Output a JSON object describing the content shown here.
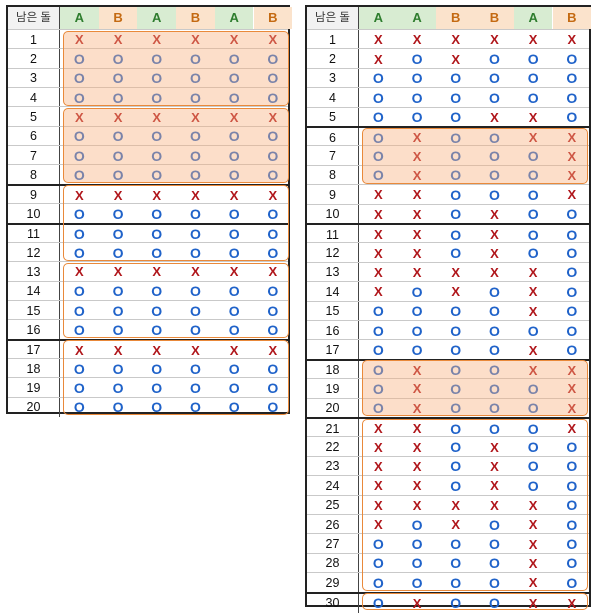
{
  "left_table": {
    "header": {
      "first": "남은 돌",
      "columns": [
        "A",
        "B",
        "A",
        "B",
        "A",
        "B"
      ]
    },
    "rows": [
      {
        "n": "1",
        "v": [
          "X",
          "X",
          "X",
          "X",
          "X",
          "X"
        ]
      },
      {
        "n": "2",
        "v": [
          "O",
          "O",
          "O",
          "O",
          "O",
          "O"
        ]
      },
      {
        "n": "3",
        "v": [
          "O",
          "O",
          "O",
          "O",
          "O",
          "O"
        ]
      },
      {
        "n": "4",
        "v": [
          "O",
          "O",
          "O",
          "O",
          "O",
          "O"
        ]
      },
      {
        "n": "5",
        "v": [
          "X",
          "X",
          "X",
          "X",
          "X",
          "X"
        ]
      },
      {
        "n": "6",
        "v": [
          "O",
          "O",
          "O",
          "O",
          "O",
          "O"
        ]
      },
      {
        "n": "7",
        "v": [
          "O",
          "O",
          "O",
          "O",
          "O",
          "O"
        ]
      },
      {
        "n": "8",
        "v": [
          "O",
          "O",
          "O",
          "O",
          "O",
          "O"
        ]
      },
      {
        "n": "9",
        "v": [
          "X",
          "X",
          "X",
          "X",
          "X",
          "X"
        ]
      },
      {
        "n": "10",
        "v": [
          "O",
          "O",
          "O",
          "O",
          "O",
          "O"
        ]
      },
      {
        "n": "11",
        "v": [
          "O",
          "O",
          "O",
          "O",
          "O",
          "O"
        ]
      },
      {
        "n": "12",
        "v": [
          "O",
          "O",
          "O",
          "O",
          "O",
          "O"
        ]
      },
      {
        "n": "13",
        "v": [
          "X",
          "X",
          "X",
          "X",
          "X",
          "X"
        ]
      },
      {
        "n": "14",
        "v": [
          "O",
          "O",
          "O",
          "O",
          "O",
          "O"
        ]
      },
      {
        "n": "15",
        "v": [
          "O",
          "O",
          "O",
          "O",
          "O",
          "O"
        ]
      },
      {
        "n": "16",
        "v": [
          "O",
          "O",
          "O",
          "O",
          "O",
          "O"
        ]
      },
      {
        "n": "17",
        "v": [
          "X",
          "X",
          "X",
          "X",
          "X",
          "X"
        ]
      },
      {
        "n": "18",
        "v": [
          "O",
          "O",
          "O",
          "O",
          "O",
          "O"
        ]
      },
      {
        "n": "19",
        "v": [
          "O",
          "O",
          "O",
          "O",
          "O",
          "O"
        ]
      },
      {
        "n": "20",
        "v": [
          "O",
          "O",
          "O",
          "O",
          "O",
          "O"
        ]
      }
    ]
  },
  "right_table": {
    "header": {
      "first": "남은 돌",
      "columns": [
        "A",
        "A",
        "B",
        "B",
        "A",
        "B"
      ]
    },
    "rows": [
      {
        "n": "1",
        "v": [
          "X",
          "X",
          "X",
          "X",
          "X",
          "X"
        ]
      },
      {
        "n": "2",
        "v": [
          "X",
          "O",
          "X",
          "O",
          "O",
          "O"
        ]
      },
      {
        "n": "3",
        "v": [
          "O",
          "O",
          "O",
          "O",
          "O",
          "O"
        ]
      },
      {
        "n": "4",
        "v": [
          "O",
          "O",
          "O",
          "O",
          "O",
          "O"
        ]
      },
      {
        "n": "5",
        "v": [
          "O",
          "O",
          "O",
          "X",
          "X",
          "O"
        ]
      },
      {
        "n": "6",
        "v": [
          "O",
          "X",
          "O",
          "O",
          "X",
          "X"
        ]
      },
      {
        "n": "7",
        "v": [
          "O",
          "X",
          "O",
          "O",
          "O",
          "X"
        ]
      },
      {
        "n": "8",
        "v": [
          "O",
          "X",
          "O",
          "O",
          "O",
          "X"
        ]
      },
      {
        "n": "9",
        "v": [
          "X",
          "X",
          "O",
          "O",
          "O",
          "X"
        ]
      },
      {
        "n": "10",
        "v": [
          "X",
          "X",
          "O",
          "X",
          "O",
          "O"
        ]
      },
      {
        "n": "11",
        "v": [
          "X",
          "X",
          "O",
          "X",
          "O",
          "O"
        ]
      },
      {
        "n": "12",
        "v": [
          "X",
          "X",
          "O",
          "X",
          "O",
          "O"
        ]
      },
      {
        "n": "13",
        "v": [
          "X",
          "X",
          "X",
          "X",
          "X",
          "O"
        ]
      },
      {
        "n": "14",
        "v": [
          "X",
          "O",
          "X",
          "O",
          "X",
          "O"
        ]
      },
      {
        "n": "15",
        "v": [
          "O",
          "O",
          "O",
          "O",
          "X",
          "O"
        ]
      },
      {
        "n": "16",
        "v": [
          "O",
          "O",
          "O",
          "O",
          "O",
          "O"
        ]
      },
      {
        "n": "17",
        "v": [
          "O",
          "O",
          "O",
          "O",
          "X",
          "O"
        ]
      },
      {
        "n": "18",
        "v": [
          "O",
          "X",
          "O",
          "O",
          "X",
          "X"
        ]
      },
      {
        "n": "19",
        "v": [
          "O",
          "X",
          "O",
          "O",
          "O",
          "X"
        ]
      },
      {
        "n": "20",
        "v": [
          "O",
          "X",
          "O",
          "O",
          "O",
          "X"
        ]
      },
      {
        "n": "21",
        "v": [
          "X",
          "X",
          "O",
          "O",
          "O",
          "X"
        ]
      },
      {
        "n": "22",
        "v": [
          "X",
          "X",
          "O",
          "X",
          "O",
          "O"
        ]
      },
      {
        "n": "23",
        "v": [
          "X",
          "X",
          "O",
          "X",
          "O",
          "O"
        ]
      },
      {
        "n": "24",
        "v": [
          "X",
          "X",
          "O",
          "X",
          "O",
          "O"
        ]
      },
      {
        "n": "25",
        "v": [
          "X",
          "X",
          "X",
          "X",
          "X",
          "O"
        ]
      },
      {
        "n": "26",
        "v": [
          "X",
          "O",
          "X",
          "O",
          "X",
          "O"
        ]
      },
      {
        "n": "27",
        "v": [
          "O",
          "O",
          "O",
          "O",
          "X",
          "O"
        ]
      },
      {
        "n": "28",
        "v": [
          "O",
          "O",
          "O",
          "O",
          "X",
          "O"
        ]
      },
      {
        "n": "29",
        "v": [
          "O",
          "O",
          "O",
          "O",
          "X",
          "O"
        ]
      },
      {
        "n": "30",
        "v": [
          "O",
          "X",
          "O",
          "O",
          "X",
          "X"
        ]
      }
    ]
  },
  "colors": {
    "x_mark": "#b0161b",
    "o_mark": "#1f62c9",
    "header_a_bg": "#d8ecd2",
    "header_b_bg": "#fbe3cc",
    "highlight_border": "#e9893a",
    "highlight_fill": "#f8b17f"
  }
}
